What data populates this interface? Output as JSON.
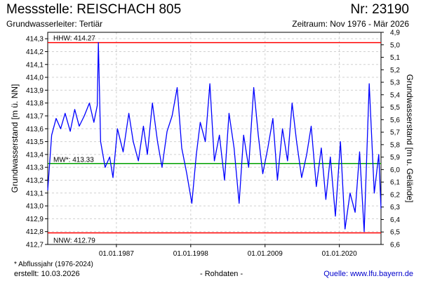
{
  "header": {
    "title": "Messstelle: REISCHACH 805",
    "number": "Nr: 23190",
    "aquifer": "Grundwasserleiter: Tertiär",
    "period": "Zeitraum: Nov 1976 - Mär 2026"
  },
  "footer": {
    "footnote": "* Abflussjahr (1976-2024)",
    "created": "erstellt:  10.03.2026",
    "rawdata": "- Rohdaten -",
    "source": "Quelle:  www.lfu.bayern.de"
  },
  "colors": {
    "series": "#0000ff",
    "extreme_lines": "#ff0000",
    "mean_line": "#00a000",
    "grid": "#d0d0d0"
  },
  "chart_data": {
    "type": "line",
    "ylabel": "Grundwasserstand [m ü. NN]",
    "y2label": "Grundwasserstand [m u. Gelände]",
    "ylim": [
      412.7,
      414.35
    ],
    "y2lim": [
      6.6,
      4.9
    ],
    "yticks": [
      "412,7",
      "412,8",
      "412,9",
      "413,0",
      "413,1",
      "413,2",
      "413,3",
      "413,4",
      "413,5",
      "413,6",
      "413,7",
      "413,8",
      "413,9",
      "414,0",
      "414,1",
      "414,2",
      "414,3"
    ],
    "y2ticks": [
      "4,9",
      "5,0",
      "5,1",
      "5,2",
      "5,3",
      "5,4",
      "5,5",
      "5,6",
      "5,7",
      "5,8",
      "5,9",
      "6,0",
      "6,1",
      "6,2",
      "6,3",
      "6,4",
      "6,5",
      "6,6"
    ],
    "xlim": [
      "1976-11-01",
      "2026-03-01"
    ],
    "xticks": [
      "01.01.1987",
      "01.01.1998",
      "01.01.2009",
      "01.01.2020"
    ],
    "grid": true,
    "reference_lines": [
      {
        "label": "HHW: 414.27",
        "value": 414.27
      },
      {
        "label": "MW*: 413.33",
        "value": 413.33
      },
      {
        "label": "NNW: 412.79",
        "value": 412.79
      }
    ],
    "series": [
      {
        "x": [
          "1976-11-01",
          "1977-06-01",
          "1978-02-01",
          "1978-10-01",
          "1979-06-01",
          "1980-03-01",
          "1980-11-01",
          "1981-07-01",
          "1982-04-01",
          "1983-01-01",
          "1983-09-01",
          "1984-03-01",
          "1984-05-01",
          "1984-09-01",
          "1985-05-01",
          "1986-01-01",
          "1986-07-01",
          "1987-03-01",
          "1988-01-01",
          "1988-11-01",
          "1989-07-01",
          "1990-04-01",
          "1991-01-01",
          "1991-08-01",
          "1992-05-01",
          "1993-02-01",
          "1993-10-01",
          "1994-07-01",
          "1995-04-01",
          "1996-01-01",
          "1996-09-01",
          "1997-06-01",
          "1998-03-01",
          "1998-11-01",
          "1999-06-01",
          "2000-03-01",
          "2000-11-01",
          "2001-07-01",
          "2002-04-01",
          "2003-01-01",
          "2003-09-01",
          "2004-06-01",
          "2005-03-01",
          "2005-11-01",
          "2006-08-01",
          "2007-05-01",
          "2008-01-01",
          "2008-09-01",
          "2009-06-01",
          "2010-03-01",
          "2010-11-01",
          "2011-08-01",
          "2012-05-01",
          "2013-01-01",
          "2013-09-01",
          "2014-06-01",
          "2015-03-01",
          "2015-11-01",
          "2016-08-01",
          "2017-05-01",
          "2018-01-01",
          "2018-09-01",
          "2019-06-01",
          "2020-03-01",
          "2020-11-01",
          "2021-08-01",
          "2022-05-01",
          "2023-01-01",
          "2023-09-01",
          "2024-06-01",
          "2025-03-01",
          "2025-11-01",
          "2026-03-01"
        ],
        "y": [
          413.12,
          413.55,
          413.68,
          413.6,
          413.72,
          413.58,
          413.75,
          413.62,
          413.7,
          413.8,
          413.65,
          413.78,
          414.27,
          413.5,
          413.3,
          413.38,
          413.22,
          413.6,
          413.42,
          413.72,
          413.5,
          413.35,
          413.62,
          413.4,
          413.8,
          413.5,
          413.3,
          413.58,
          413.7,
          413.92,
          413.45,
          413.25,
          413.02,
          413.4,
          413.65,
          413.5,
          413.95,
          413.35,
          413.55,
          413.2,
          413.72,
          413.45,
          413.02,
          413.55,
          413.3,
          413.92,
          413.55,
          413.25,
          413.45,
          413.68,
          413.2,
          413.6,
          413.35,
          413.8,
          413.5,
          413.22,
          413.4,
          413.62,
          413.15,
          413.45,
          413.05,
          413.38,
          412.92,
          413.5,
          412.82,
          413.1,
          412.95,
          413.42,
          412.8,
          413.95,
          413.1,
          413.4,
          412.98
        ]
      }
    ]
  }
}
